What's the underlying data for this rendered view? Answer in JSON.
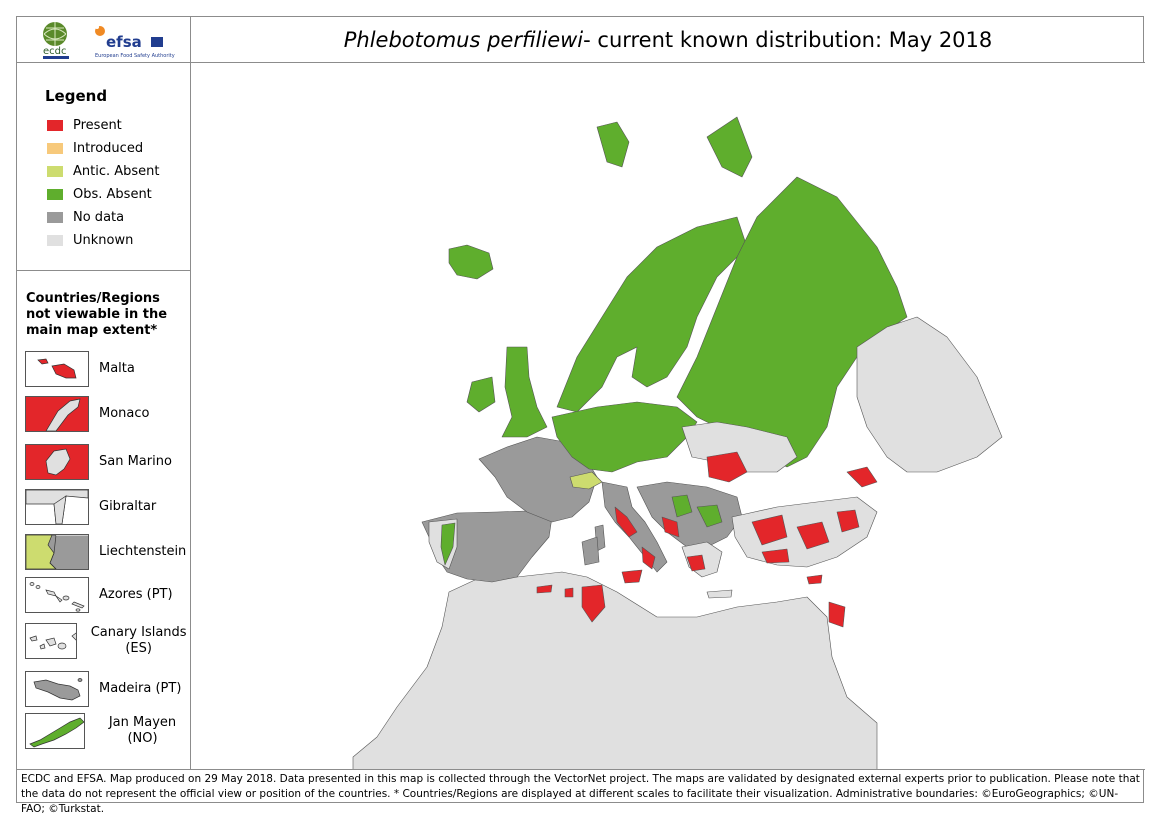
{
  "header": {
    "logos": [
      "ecdc",
      "efsa"
    ],
    "ecdc_text": "ecdc",
    "efsa_text": "efsa",
    "efsa_sub": "European Food Safety Authority",
    "title_species": "Phlebotomus perfiliewi",
    "title_rest": " - current known distribution: May 2018"
  },
  "legend": {
    "title": "Legend",
    "items": [
      {
        "label": "Present",
        "color": "#e3262a"
      },
      {
        "label": "Introduced",
        "color": "#f7c97b"
      },
      {
        "label": "Antic. Absent",
        "color": "#cddc6f"
      },
      {
        "label": "Obs. Absent",
        "color": "#5fae2d"
      },
      {
        "label": "No data",
        "color": "#9a9a9a"
      },
      {
        "label": "Unknown",
        "color": "#e0e0e0"
      }
    ]
  },
  "regions": {
    "title": "Countries/Regions not viewable in the main map extent*",
    "items": [
      {
        "label": "Malta",
        "status": "Present"
      },
      {
        "label": "Monaco",
        "status": "Present"
      },
      {
        "label": "San Marino",
        "status": "Present"
      },
      {
        "label": "Gibraltar",
        "status": "Unknown"
      },
      {
        "label": "Liechtenstein",
        "status": "Antic. Absent"
      },
      {
        "label": "Azores (PT)",
        "status": "Unknown"
      },
      {
        "label": "Canary Islands (ES)",
        "status": "Unknown"
      },
      {
        "label": "Madeira (PT)",
        "status": "No data"
      },
      {
        "label": "Jan Mayen (NO)",
        "status": "Obs. Absent"
      }
    ]
  },
  "footer": {
    "text": "ECDC and EFSA. Map produced on 29 May 2018. Data presented in this map is collected through the VectorNet project. The maps are validated by designated external experts prior to publication. Please note that the data do not represent the official view or position of the countries. * Countries/Regions are displayed at different scales to facilitate their visualization. Administrative boundaries: ©EuroGeographics; ©UN-FAO; ©Turkstat."
  }
}
